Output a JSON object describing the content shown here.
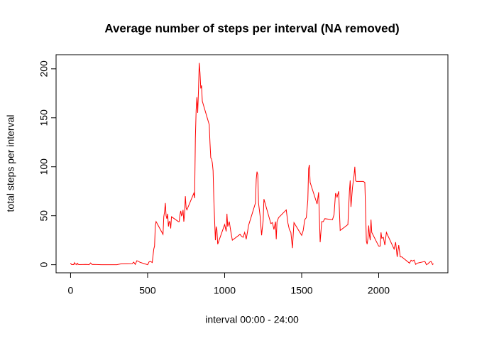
{
  "chart_data": {
    "type": "line",
    "title": "Average number of steps per interval (NA removed)",
    "x_label": "interval 00:00 - 24:00",
    "y_label": "total steps per interval",
    "color": "#ff0000",
    "xlim": [
      -94.2,
      2449.2
    ],
    "xticks": [
      0,
      500,
      1000,
      1500,
      2000
    ],
    "ylim": [
      -8.25,
      214.4
    ],
    "yticks": [
      0,
      50,
      100,
      150,
      200
    ],
    "x": [
      0,
      5,
      10,
      15,
      20,
      25,
      30,
      35,
      40,
      45,
      50,
      55,
      100,
      110,
      120,
      130,
      140,
      150,
      200,
      230,
      300,
      330,
      400,
      410,
      420,
      430,
      440,
      450,
      500,
      510,
      520,
      530,
      540,
      545,
      550,
      555,
      600,
      605,
      610,
      615,
      620,
      625,
      630,
      635,
      640,
      645,
      650,
      655,
      700,
      705,
      710,
      715,
      720,
      725,
      730,
      735,
      740,
      745,
      750,
      755,
      800,
      805,
      810,
      815,
      820,
      825,
      830,
      835,
      840,
      845,
      850,
      855,
      900,
      905,
      910,
      915,
      920,
      925,
      930,
      935,
      940,
      945,
      950,
      955,
      1000,
      1010,
      1015,
      1020,
      1030,
      1040,
      1050,
      1100,
      1110,
      1120,
      1130,
      1140,
      1150,
      1155,
      1200,
      1205,
      1210,
      1215,
      1220,
      1230,
      1240,
      1245,
      1250,
      1255,
      1300,
      1310,
      1320,
      1330,
      1335,
      1340,
      1350,
      1400,
      1410,
      1420,
      1430,
      1440,
      1450,
      1500,
      1510,
      1520,
      1530,
      1540,
      1545,
      1550,
      1555,
      1600,
      1610,
      1620,
      1630,
      1640,
      1650,
      1700,
      1710,
      1720,
      1730,
      1740,
      1750,
      1800,
      1810,
      1815,
      1820,
      1830,
      1840,
      1845,
      1850,
      1855,
      1900,
      1910,
      1920,
      1925,
      1930,
      1935,
      1940,
      1945,
      1950,
      1955,
      2000,
      2010,
      2015,
      2020,
      2030,
      2040,
      2050,
      2100,
      2110,
      2120,
      2130,
      2140,
      2150,
      2200,
      2210,
      2220,
      2230,
      2240,
      2250,
      2300,
      2310,
      2320,
      2330,
      2340,
      2350,
      2355
    ],
    "values": [
      1.7,
      0.3,
      0.1,
      0.2,
      0.1,
      2.1,
      0.5,
      0.9,
      0,
      1.5,
      0.3,
      0.1,
      0.3,
      0.2,
      0,
      1.8,
      0.2,
      0.3,
      0,
      0,
      0,
      1.0,
      1.2,
      2.6,
      0.3,
      4.1,
      3.5,
      2.5,
      0,
      3.0,
      3.3,
      2.2,
      16,
      19,
      40,
      44,
      31,
      49,
      54,
      63,
      50,
      47,
      52,
      39,
      44,
      44,
      37,
      49,
      44,
      44,
      51,
      55,
      50,
      51,
      56,
      44,
      52,
      70,
      58,
      56,
      73,
      68,
      129,
      158,
      171,
      155,
      177,
      206,
      196,
      180,
      183,
      167,
      143,
      124,
      109,
      108,
      104,
      96,
      66,
      45,
      25,
      39,
      35,
      21,
      41,
      34,
      52,
      39,
      44,
      34,
      25,
      31,
      29,
      28,
      33,
      26,
      35,
      40,
      63,
      87,
      95,
      92,
      63,
      50,
      30,
      38,
      45,
      67,
      42,
      43,
      36,
      44,
      26,
      44,
      48,
      56,
      43,
      36,
      33,
      17,
      43,
      30,
      35,
      46,
      48,
      66,
      98,
      102,
      84,
      62,
      74,
      23,
      44,
      44,
      47,
      46,
      51,
      73,
      69,
      75,
      35,
      41,
      75,
      86,
      59,
      79,
      91,
      100,
      86,
      85,
      85,
      84,
      24,
      21,
      27,
      40,
      30,
      25,
      46,
      33,
      19,
      19,
      33,
      27,
      28,
      20,
      33,
      16,
      23,
      8,
      20,
      8,
      8,
      1.6,
      4.6,
      3.7,
      4.7,
      0.3,
      1.6,
      3.3,
      0,
      1,
      2.6,
      3.3,
      0.2,
      1.1
    ]
  }
}
